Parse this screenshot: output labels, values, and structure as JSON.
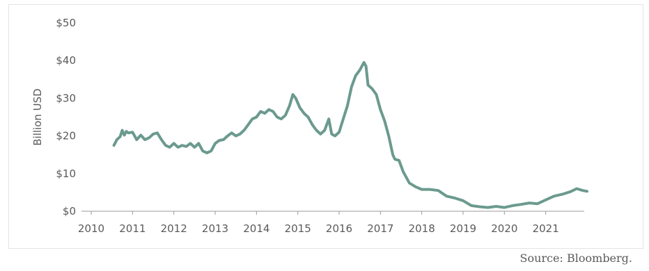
{
  "chart_data": {
    "type": "line",
    "ylabel": "Billion USD",
    "xlim": [
      2010,
      2022
    ],
    "ylim": [
      0,
      50
    ],
    "x_ticks": [
      2010,
      2011,
      2012,
      2013,
      2014,
      2015,
      2016,
      2017,
      2018,
      2019,
      2020,
      2021
    ],
    "x_tick_labels": [
      "2010",
      "2011",
      "2012",
      "2013",
      "2014",
      "2015",
      "2016",
      "2017",
      "2018",
      "2019",
      "2020",
      "2021"
    ],
    "y_ticks": [
      0,
      10,
      20,
      30,
      40,
      50
    ],
    "y_tick_labels": [
      "$0",
      "$10",
      "$20",
      "$30",
      "$40",
      "$50"
    ],
    "grid": false,
    "line_color": "#6b9a8e",
    "series": [
      {
        "x": [
          2010.55,
          2010.62,
          2010.7,
          2010.75,
          2010.8,
          2010.85,
          2010.9,
          2011.0,
          2011.1,
          2011.2,
          2011.3,
          2011.4,
          2011.5,
          2011.6,
          2011.7,
          2011.8,
          2011.9,
          2012.0,
          2012.1,
          2012.2,
          2012.3,
          2012.4,
          2012.5,
          2012.6,
          2012.7,
          2012.8,
          2012.9,
          2013.0,
          2013.1,
          2013.2,
          2013.3,
          2013.4,
          2013.5,
          2013.6,
          2013.7,
          2013.8,
          2013.9,
          2014.0,
          2014.1,
          2014.2,
          2014.3,
          2014.4,
          2014.5,
          2014.6,
          2014.7,
          2014.8,
          2014.88,
          2014.95,
          2015.05,
          2015.15,
          2015.25,
          2015.35,
          2015.45,
          2015.55,
          2015.65,
          2015.75,
          2015.82,
          2015.9,
          2016.0,
          2016.1,
          2016.2,
          2016.3,
          2016.4,
          2016.5,
          2016.6,
          2016.65,
          2016.7,
          2016.8,
          2016.9,
          2017.0,
          2017.1,
          2017.2,
          2017.3,
          2017.35,
          2017.45,
          2017.55,
          2017.7,
          2017.85,
          2018.0,
          2018.2,
          2018.4,
          2018.6,
          2018.8,
          2019.0,
          2019.2,
          2019.4,
          2019.6,
          2019.8,
          2020.0,
          2020.2,
          2020.4,
          2020.6,
          2020.8,
          2021.0,
          2021.2,
          2021.4,
          2021.6,
          2021.75,
          2021.9,
          2022.0
        ],
        "y": [
          17.5,
          19,
          19.8,
          21.5,
          20.2,
          21.2,
          20.8,
          21.0,
          19.0,
          20.2,
          19.0,
          19.5,
          20.5,
          20.8,
          19.0,
          17.5,
          17.0,
          18.0,
          17.0,
          17.5,
          17.2,
          18.0,
          17.0,
          18.0,
          16.0,
          15.5,
          16.0,
          18.0,
          18.8,
          19.0,
          20.0,
          20.8,
          20.0,
          20.5,
          21.5,
          23.0,
          24.5,
          25.0,
          26.5,
          26.0,
          27.0,
          26.5,
          25.0,
          24.5,
          25.5,
          28.0,
          31.0,
          30.0,
          27.5,
          26.0,
          25.0,
          23.0,
          21.5,
          20.5,
          21.5,
          24.5,
          20.5,
          20.0,
          21.0,
          24.5,
          28.0,
          33.0,
          36.0,
          37.5,
          39.5,
          38.5,
          33.5,
          32.5,
          31.0,
          27.0,
          24.0,
          20.0,
          15.0,
          13.8,
          13.5,
          10.5,
          7.5,
          6.5,
          5.8,
          5.8,
          5.5,
          4.0,
          3.5,
          2.8,
          1.5,
          1.2,
          1.0,
          1.3,
          1.0,
          1.5,
          1.8,
          2.2,
          2.0,
          3.0,
          4.0,
          4.5,
          5.2,
          6.0,
          5.5,
          5.3
        ]
      }
    ]
  },
  "source_note": "Source: Bloomberg."
}
